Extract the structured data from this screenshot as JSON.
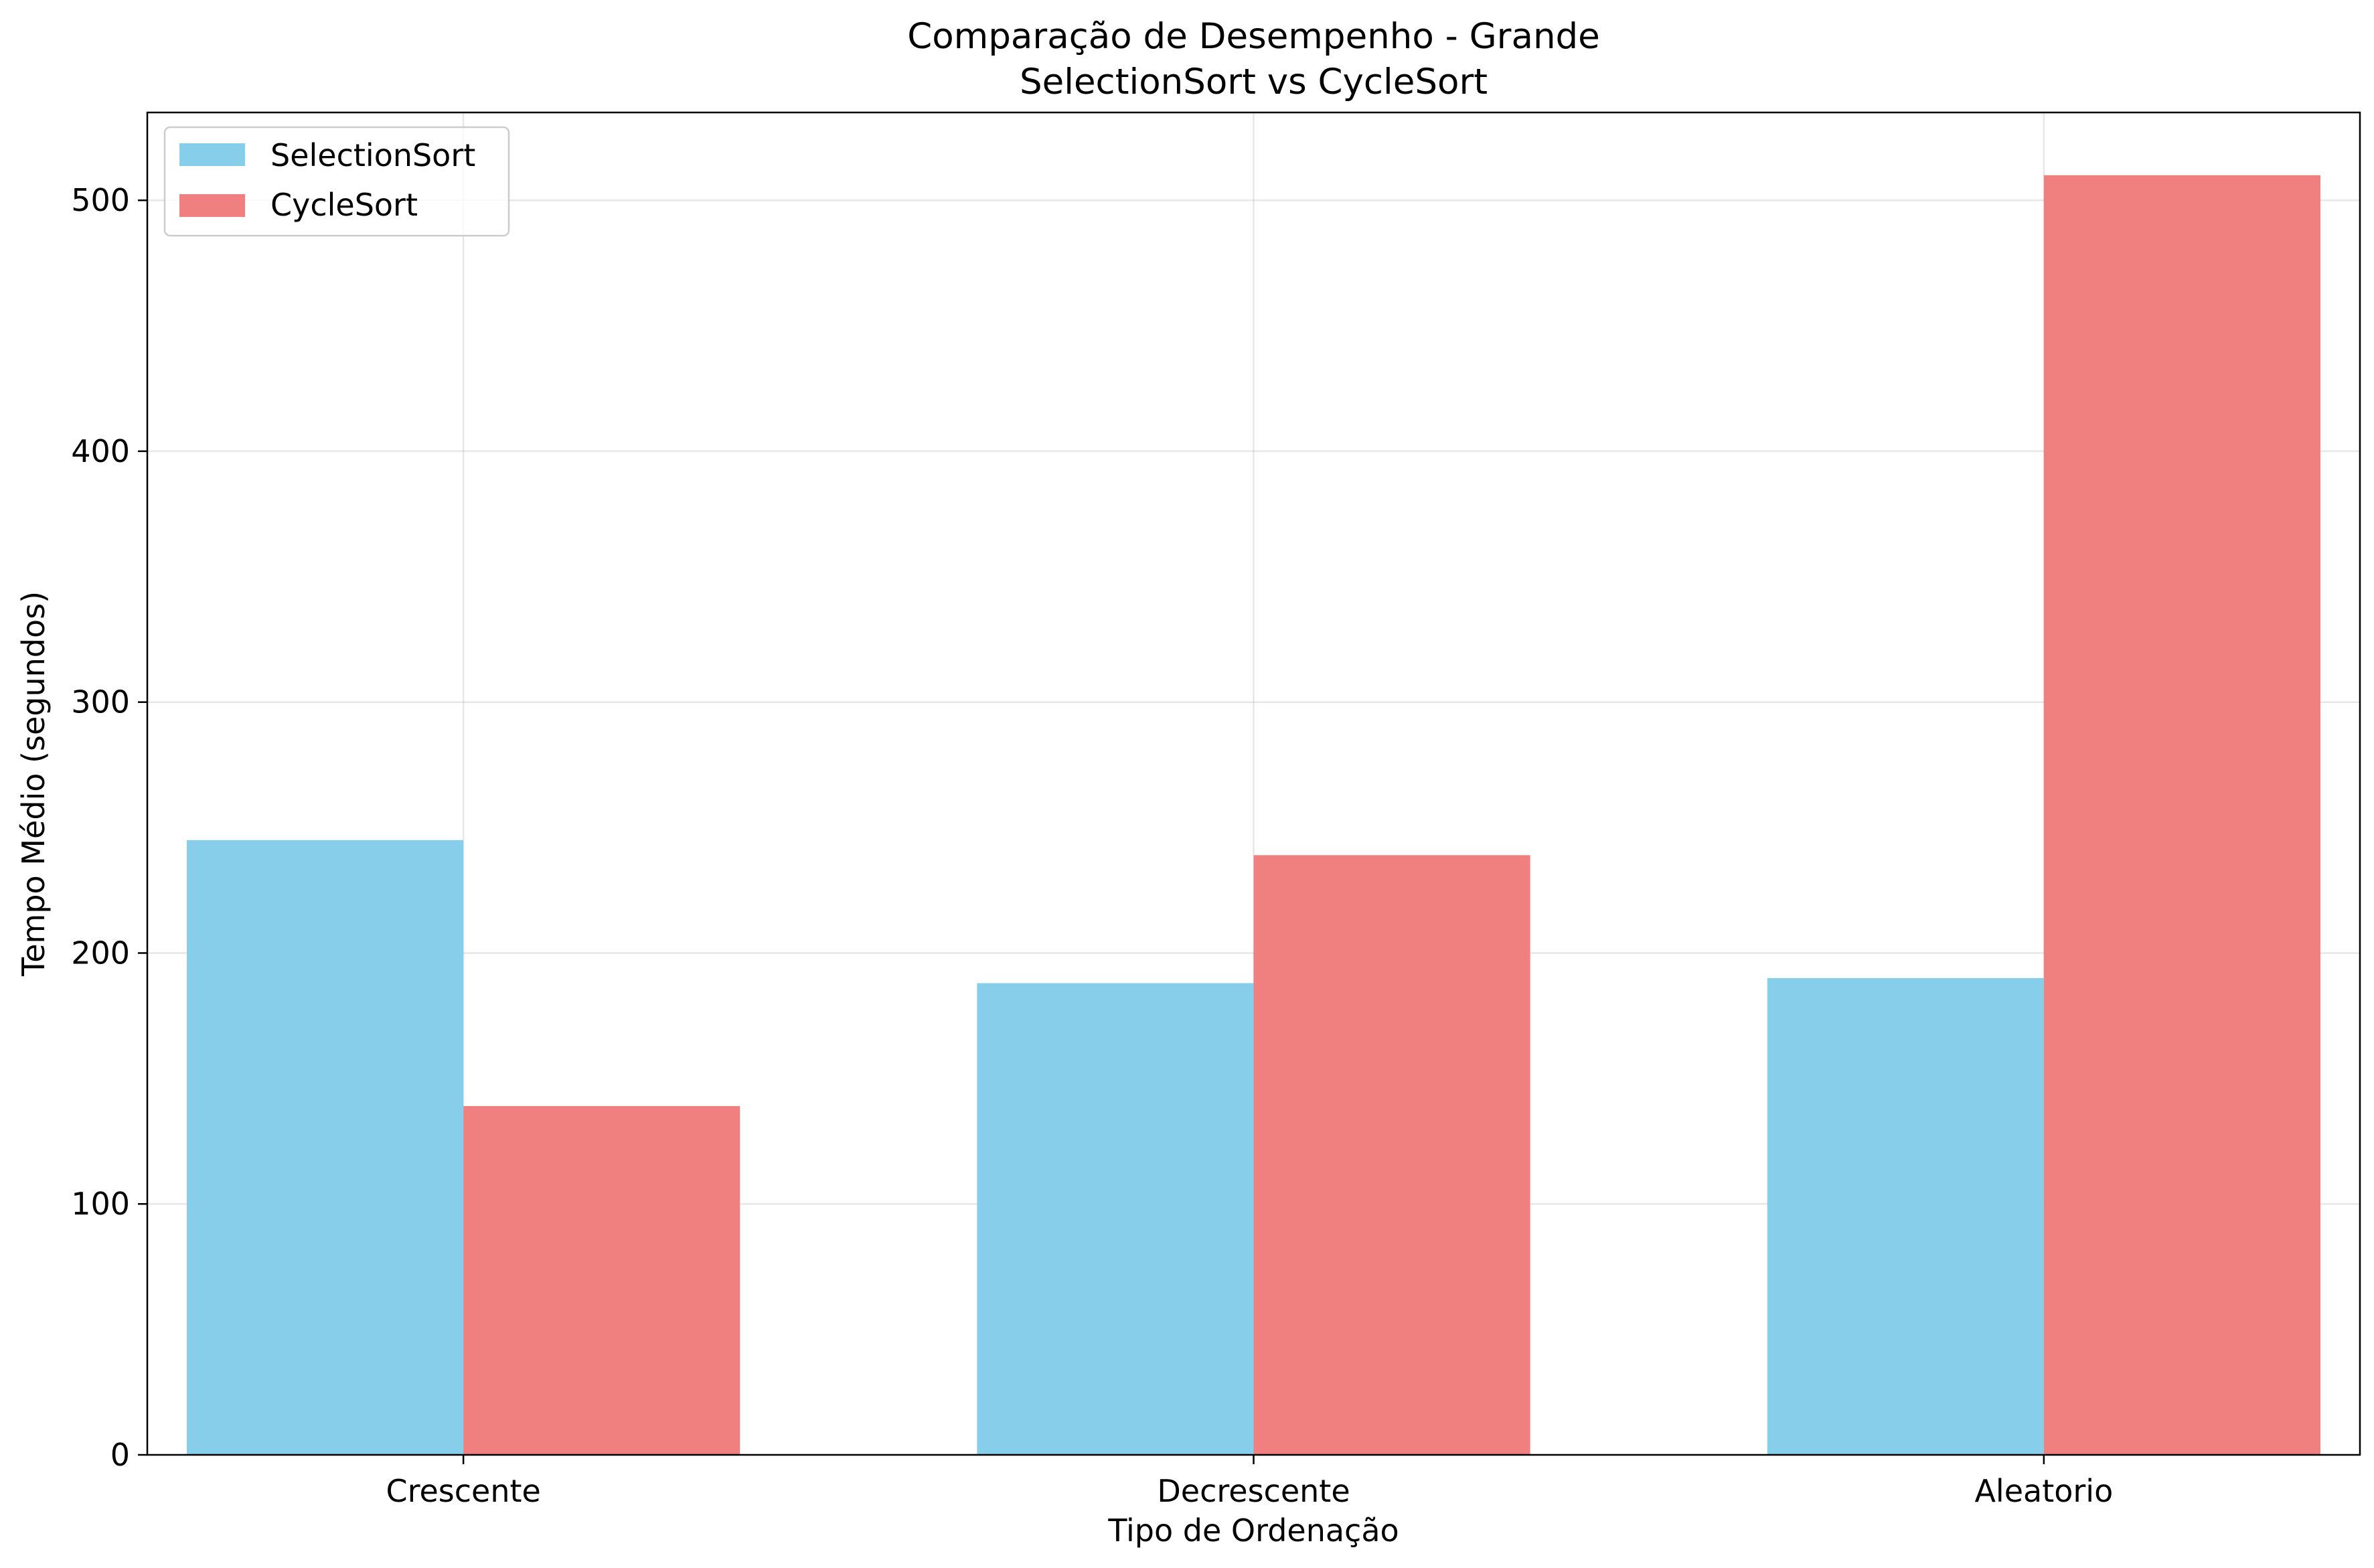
{
  "chart_data": {
    "type": "bar",
    "title": "Comparação de Desempenho - Grande",
    "subtitle": "SelectionSort vs CycleSort",
    "xlabel": "Tipo de Ordenação",
    "ylabel": "Tempo Médio (segundos)",
    "categories": [
      "Crescente",
      "Decrescente",
      "Aleatorio"
    ],
    "series": [
      {
        "name": "SelectionSort",
        "values": [
          245,
          188,
          190
        ],
        "color": "#87CEEB"
      },
      {
        "name": "CycleSort",
        "values": [
          139,
          239,
          510
        ],
        "color": "#F08080"
      }
    ],
    "ylim": [
      0,
      535
    ],
    "yticks": [
      0,
      100,
      200,
      300,
      400,
      500
    ],
    "grid": true,
    "legend_position": "top-left"
  }
}
